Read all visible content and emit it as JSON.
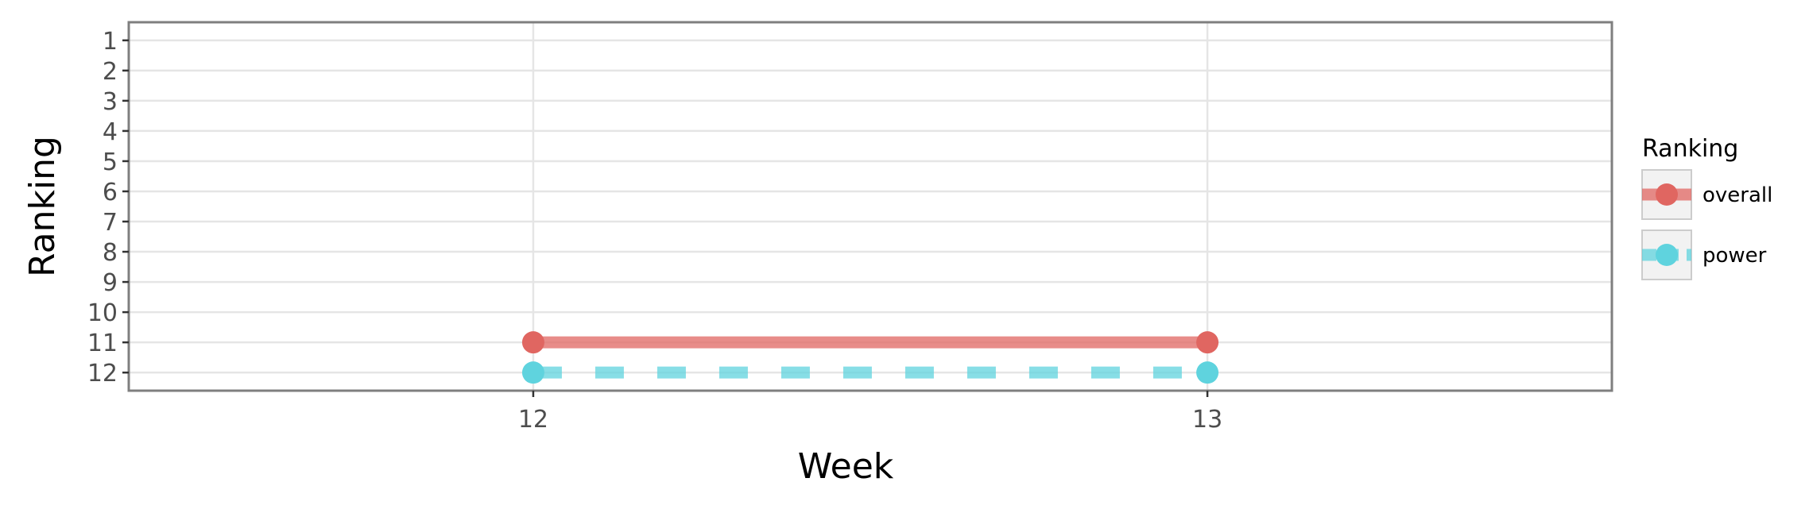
{
  "chart_data": {
    "type": "line",
    "title": "",
    "xlabel": "Week",
    "ylabel": "Ranking",
    "x_ticks": [
      "12",
      "13"
    ],
    "y_ticks": [
      "1",
      "2",
      "3",
      "4",
      "5",
      "6",
      "7",
      "8",
      "9",
      "10",
      "11",
      "12"
    ],
    "xlim": [
      11.4,
      13.6
    ],
    "ylim": [
      12.6,
      0.4
    ],
    "y_reversed": true,
    "grid": true,
    "legend": {
      "title": "Ranking",
      "position": "right"
    },
    "series": [
      {
        "name": "overall",
        "color": "#e06661",
        "line_style": "solid",
        "x": [
          12,
          13
        ],
        "y": [
          11,
          11
        ]
      },
      {
        "name": "power",
        "color": "#5fd3de",
        "line_style": "dashed",
        "x": [
          12,
          13
        ],
        "y": [
          12,
          12
        ]
      }
    ]
  }
}
